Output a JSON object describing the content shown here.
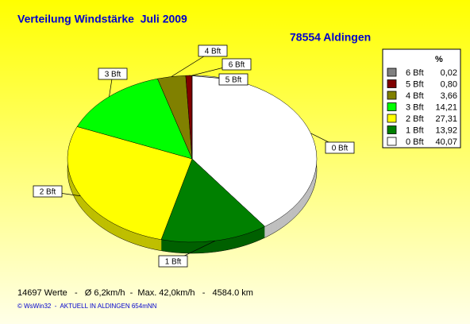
{
  "chart_data": {
    "type": "pie",
    "title": "Verteilung Windstärke  Juli 2009",
    "subtitle": "78554 Aldingen",
    "legend_title": "%",
    "categories": [
      "0 Bft",
      "1 Bft",
      "2 Bft",
      "3 Bft",
      "4 Bft",
      "5 Bft",
      "6 Bft"
    ],
    "values": [
      40.07,
      13.92,
      27.31,
      14.21,
      3.66,
      0.8,
      0.02
    ],
    "value_labels": [
      "40,07",
      "13,92",
      "27,31",
      "14,21",
      "3,66",
      "0,80",
      "0,02"
    ],
    "colors": [
      "#ffffff",
      "#008000",
      "#ffff00",
      "#00ff00",
      "#808000",
      "#800000",
      "#808080"
    ],
    "annotations": [
      "14697 Werte   -   Ø 6,2km/h  -  Max. 42,0km/h   -   4584.0 km",
      "© WsWin32  -  AKTUELL IN ALDINGEN 654mNN"
    ]
  }
}
